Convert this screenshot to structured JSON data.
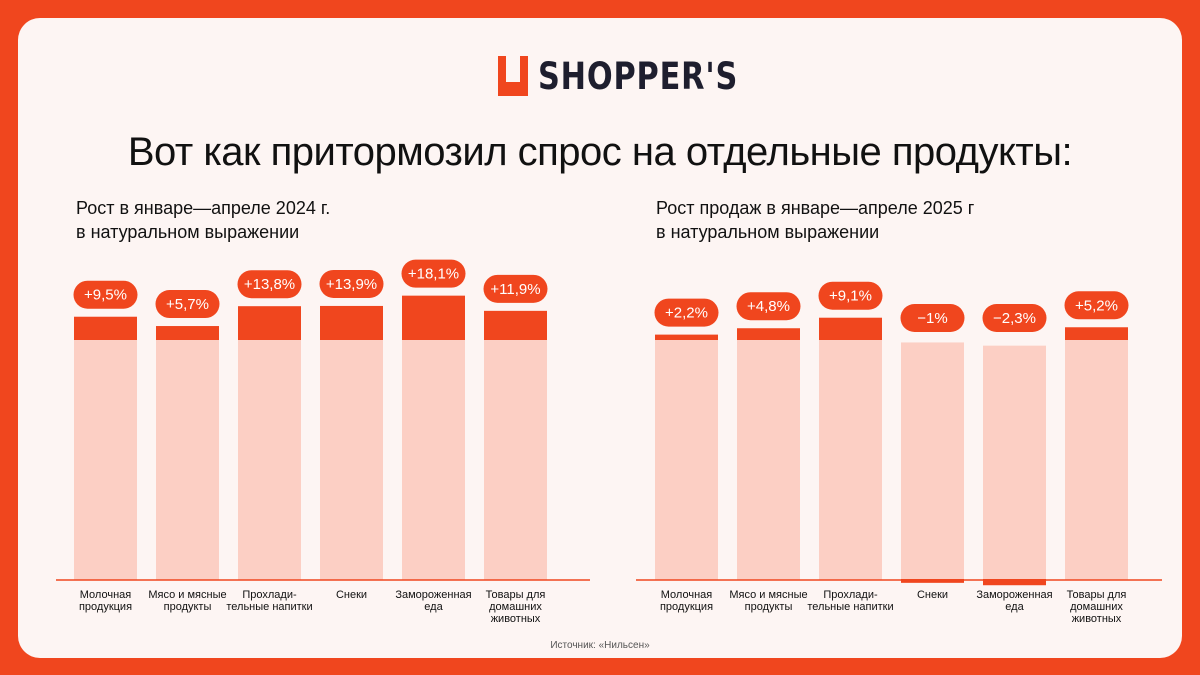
{
  "brand": {
    "name": "SHOPPER'S",
    "accent": "#f0461e",
    "dark": "#1e1e2e"
  },
  "headline": "Вот как притормозил спрос на отдельные продукты:",
  "source": "Источник: «Нильсен»",
  "chart_data": [
    {
      "type": "bar",
      "title": "Рост в январе—апреле 2024 г.\nв натуральном выражении",
      "title_lines": [
        "Рост в январе—апреле 2024 г.",
        "в натуральном выражении"
      ],
      "categories": [
        "Молочная продукция",
        "Мясо и мясные продукты",
        "Прохладительные напитки",
        "Снеки",
        "Замороженная еда",
        "Товары для домашних животных"
      ],
      "category_lines": [
        [
          "Молочная",
          "продукция"
        ],
        [
          "Мясо и мясные",
          "продукты"
        ],
        [
          "Прохлади-",
          "тельные напитки"
        ],
        [
          "Снеки"
        ],
        [
          "Замороженная",
          "еда"
        ],
        [
          "Товары для",
          "домашних",
          "животных"
        ]
      ],
      "values": [
        9.5,
        5.7,
        13.8,
        13.9,
        18.1,
        11.9
      ],
      "labels": [
        "+9,5%",
        "+5,7%",
        "+13,8%",
        "+13,9%",
        "+18,1%",
        "+11,9%"
      ],
      "unit": "%",
      "colors": {
        "base": "#fccfc4",
        "change": "#f0461e",
        "axis": "#f0461e"
      }
    },
    {
      "type": "bar",
      "title": "Рост продаж в январе—апреле 2025 г\nв натуральном выражении",
      "title_lines": [
        "Рост продаж в январе—апреле 2025 г",
        "в натуральном выражении"
      ],
      "categories": [
        "Молочная продукция",
        "Мясо и мясные продукты",
        "Прохладительные напитки",
        "Снеки",
        "Замороженная еда",
        "Товары для домашних животных"
      ],
      "category_lines": [
        [
          "Молочная",
          "продукция"
        ],
        [
          "Мясо и мясные",
          "продукты"
        ],
        [
          "Прохлади-",
          "тельные напитки"
        ],
        [
          "Снеки"
        ],
        [
          "Замороженная",
          "еда"
        ],
        [
          "Товары для",
          "домашних",
          "животных"
        ]
      ],
      "values": [
        2.2,
        4.8,
        9.1,
        -1,
        -2.3,
        5.2
      ],
      "labels": [
        "+2,2%",
        "+4,8%",
        "+9,1%",
        "−1%",
        "−2,3%",
        "+5,2%"
      ],
      "unit": "%",
      "colors": {
        "base": "#fccfc4",
        "change": "#f0461e",
        "axis": "#f0461e"
      }
    }
  ]
}
